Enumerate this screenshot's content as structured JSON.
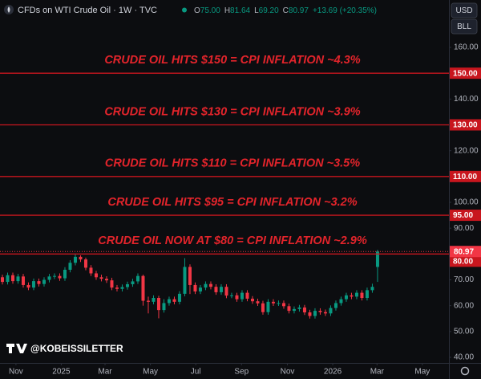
{
  "chart_data": {
    "type": "candlestick",
    "title": "CFDs on WTI Crude Oil · 1W · TVC",
    "readings": [
      {
        "key": "O",
        "value": "75.00"
      },
      {
        "key": "H",
        "value": "81.64"
      },
      {
        "key": "L",
        "value": "69.20"
      },
      {
        "key": "C",
        "value": "80.97"
      }
    ],
    "change": "+13.69 (+20.35%)",
    "currency": "USD",
    "unit": "BLL",
    "watermark": "@KOBEISSILETTER",
    "up_color": "#089981",
    "down_color": "#f23645",
    "line_color": "#c8161e",
    "annotations": [
      {
        "text": "CRUDE OIL HITS $150 = CPI INFLATION ~4.3%",
        "level": {
          "value": 150,
          "label": "150.00"
        }
      },
      {
        "text": "CRUDE OIL HITS $130 = CPI INFLATION ~3.9%",
        "level": {
          "value": 130,
          "label": "130.00"
        }
      },
      {
        "text": "CRUDE OIL HITS $110 = CPI INFLATION ~3.5%",
        "level": {
          "value": 110,
          "label": "110.00"
        }
      },
      {
        "text": "CRUDE OIL HITS $95 = CPI INFLATION ~3.2%",
        "level": {
          "value": 95,
          "label": "95.00"
        }
      },
      {
        "text": "CRUDE OIL NOW AT $80 = CPI INFLATION ~2.9%",
        "level": {
          "value": 80,
          "label": "80.00"
        }
      }
    ],
    "last_price": 80.97,
    "ylim": [
      40,
      160
    ],
    "yticks": [
      {
        "value": 40,
        "label": "40.00"
      },
      {
        "value": 50,
        "label": "50.00"
      },
      {
        "value": 60,
        "label": "60.00"
      },
      {
        "value": 70,
        "label": "70.00"
      },
      {
        "value": 90,
        "label": "90.00"
      },
      {
        "value": 100,
        "label": "100.00"
      },
      {
        "value": 120,
        "label": "120.00"
      },
      {
        "value": 140,
        "label": "140.00"
      },
      {
        "value": 160,
        "label": "160.00"
      }
    ],
    "xlim": [
      -0.46,
      85.7
    ],
    "xticks": [
      {
        "value": 2.6,
        "label": "Nov"
      },
      {
        "value": 11.3,
        "label": "2025"
      },
      {
        "value": 19.7,
        "label": "Mar"
      },
      {
        "value": 28.4,
        "label": "May"
      },
      {
        "value": 37.1,
        "label": "Jul"
      },
      {
        "value": 45.9,
        "label": "Sep"
      },
      {
        "value": 54.7,
        "label": "Nov"
      },
      {
        "value": 63.4,
        "label": "2026"
      },
      {
        "value": 71.9,
        "label": "Mar"
      },
      {
        "value": 80.6,
        "label": "May"
      }
    ],
    "open": [
      71.0,
      69.2,
      71.8,
      69.5,
      71.3,
      68.0,
      67.0,
      69.5,
      68.4,
      70.0,
      71.3,
      71.5,
      70.6,
      73.9,
      76.6,
      78.9,
      77.9,
      74.7,
      72.5,
      71.0,
      70.4,
      69.8,
      67.0,
      66.5,
      67.2,
      68.3,
      69.4,
      71.5,
      61.9,
      61.5,
      63.0,
      58.3,
      61.0,
      62.5,
      61.5,
      64.6,
      75.0,
      68.0,
      65.5,
      67.0,
      68.4,
      67.3,
      65.2,
      67.3,
      63.9,
      64.0,
      62.5,
      65.0,
      62.7,
      61.7,
      60.9,
      57.5,
      61.5,
      60.9,
      61.0,
      59.8,
      58.0,
      58.7,
      59.3,
      57.4,
      56.0,
      58.0,
      57.5,
      57.0,
      59.1,
      61.0,
      62.5,
      64.0,
      63.5,
      65.0,
      63.0,
      66.0,
      75.0
    ],
    "high": [
      72.0,
      72.8,
      72.8,
      72.3,
      72.3,
      69.0,
      70.5,
      70.5,
      71.0,
      72.3,
      72.5,
      72.5,
      74.9,
      77.6,
      80.0,
      79.5,
      78.6,
      75.7,
      73.5,
      72.0,
      71.4,
      70.8,
      68.0,
      68.2,
      69.3,
      70.4,
      72.5,
      72.0,
      63.5,
      64.0,
      63.8,
      62.5,
      63.5,
      63.5,
      65.6,
      78.4,
      76.0,
      69.0,
      68.0,
      69.4,
      69.4,
      68.3,
      68.3,
      68.3,
      65.0,
      65.0,
      66.0,
      66.0,
      63.7,
      62.7,
      61.9,
      62.5,
      62.5,
      62.0,
      62.0,
      60.8,
      59.7,
      60.3,
      60.3,
      58.4,
      59.0,
      59.0,
      58.5,
      60.1,
      62.0,
      63.5,
      65.0,
      65.0,
      66.0,
      66.0,
      67.0,
      68.5,
      81.64
    ],
    "low": [
      68.2,
      68.2,
      68.5,
      68.5,
      67.0,
      66.0,
      66.0,
      67.4,
      67.4,
      69.0,
      70.3,
      69.6,
      69.6,
      72.9,
      75.6,
      76.9,
      73.7,
      71.5,
      70.0,
      69.4,
      68.8,
      66.0,
      65.5,
      65.5,
      66.2,
      67.3,
      68.4,
      60.0,
      57.0,
      60.5,
      55.1,
      57.3,
      60.0,
      60.5,
      60.5,
      63.6,
      64.5,
      64.5,
      64.5,
      66.0,
      66.3,
      64.2,
      64.2,
      62.9,
      62.9,
      61.5,
      61.5,
      61.7,
      60.7,
      59.9,
      56.5,
      56.5,
      59.9,
      59.9,
      58.8,
      57.0,
      57.0,
      57.7,
      56.4,
      55.0,
      55.0,
      56.5,
      56.0,
      56.0,
      58.1,
      60.0,
      61.5,
      62.5,
      62.5,
      62.0,
      62.0,
      65.0,
      69.2
    ],
    "close": [
      69.2,
      71.8,
      69.5,
      71.3,
      68.0,
      67.0,
      69.5,
      68.4,
      70.0,
      71.3,
      71.5,
      70.6,
      73.9,
      76.6,
      78.9,
      77.9,
      74.7,
      72.5,
      71.0,
      70.4,
      69.8,
      67.0,
      66.5,
      67.2,
      68.3,
      69.4,
      71.5,
      61.9,
      61.5,
      63.0,
      58.3,
      61.0,
      62.5,
      61.5,
      64.6,
      75.0,
      68.0,
      65.5,
      67.0,
      68.4,
      67.3,
      65.2,
      67.3,
      63.9,
      64.0,
      62.5,
      65.0,
      62.7,
      61.7,
      60.9,
      57.5,
      61.5,
      60.9,
      61.0,
      59.8,
      58.0,
      58.7,
      59.3,
      57.4,
      56.0,
      58.0,
      57.5,
      57.0,
      59.1,
      61.0,
      62.5,
      64.0,
      63.5,
      65.0,
      63.0,
      66.0,
      67.28,
      80.97
    ]
  }
}
